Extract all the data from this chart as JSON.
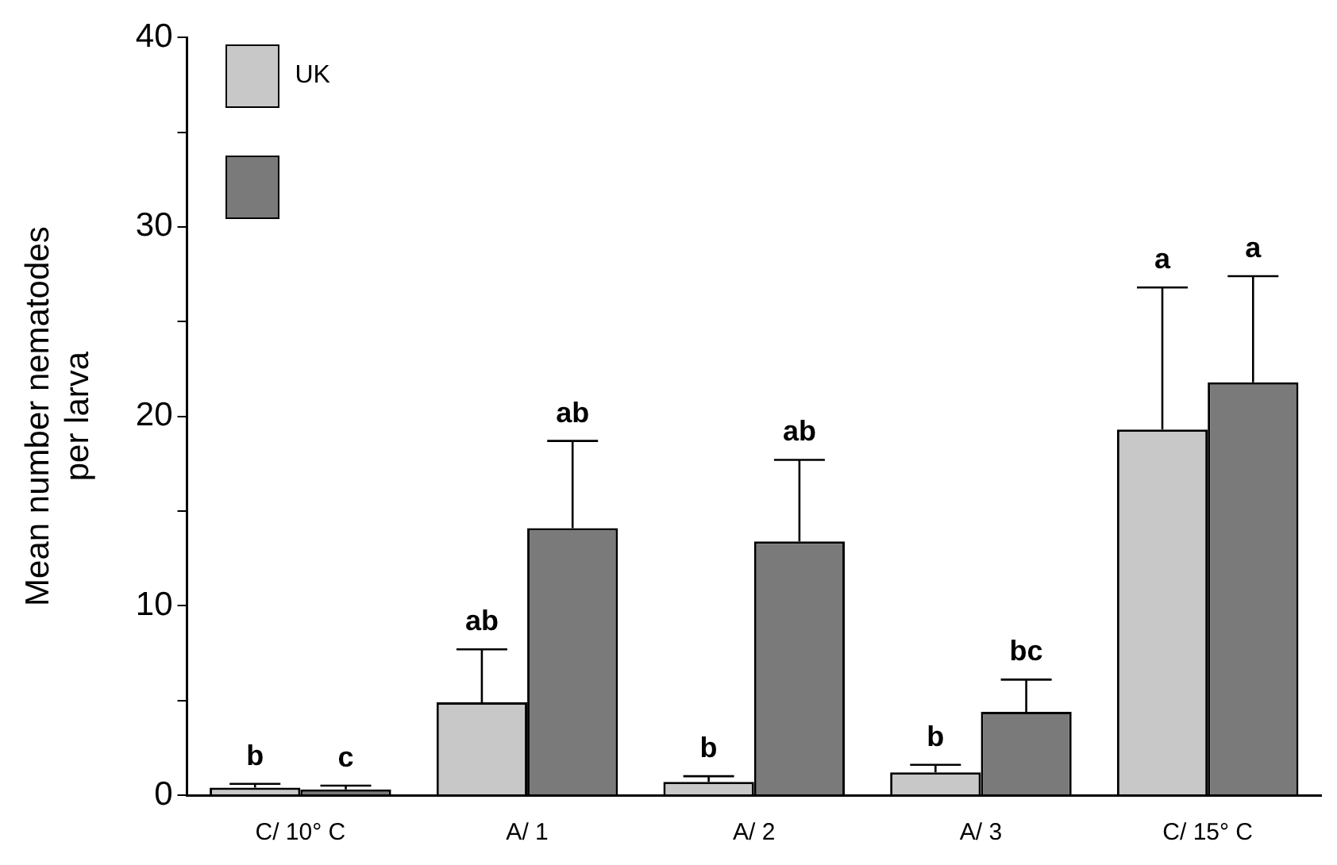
{
  "chart_data": {
    "type": "bar",
    "ylabel": "Mean number nematodes\nper larva",
    "categories": [
      "C/ 10° C",
      "A/ 1",
      "A/ 2",
      "A/ 3",
      "C/ 15° C"
    ],
    "series": [
      {
        "name": "UK",
        "color": "#c8c8c8",
        "values": [
          0.4,
          4.9,
          0.7,
          1.2,
          19.3
        ],
        "errors": [
          [
            0.4,
            0.6
          ],
          [
            4.9,
            7.7
          ],
          [
            0.7,
            1.0
          ],
          [
            1.2,
            1.6
          ],
          [
            19.3,
            26.8
          ]
        ]
      },
      {
        "color": "#7a7a7a",
        "values": [
          0.3,
          14.1,
          13.4,
          4.4,
          21.8
        ],
        "errors": [
          [
            0.3,
            0.5
          ],
          [
            14.1,
            18.7
          ],
          [
            13.4,
            17.7
          ],
          [
            4.4,
            6.1
          ],
          [
            21.8,
            27.4
          ]
        ]
      }
    ],
    "ylim": [
      0,
      40
    ],
    "yticks": [
      0,
      {
        "value": 5,
        "label": null
      },
      10,
      {
        "value": 15,
        "label": null
      },
      20,
      {
        "value": 25,
        "label": null
      },
      30,
      {
        "value": 35,
        "label": null
      },
      40
    ],
    "grid": false,
    "legend": "top left",
    "annotations": [
      "b",
      "c",
      "ab",
      "ab",
      "b",
      "ab",
      "b",
      "bc",
      "a",
      "a"
    ]
  }
}
